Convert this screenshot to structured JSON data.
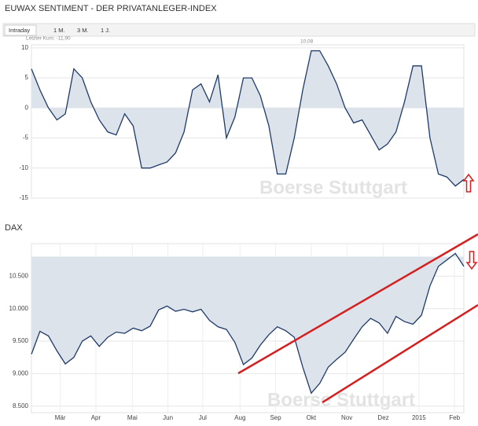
{
  "tabs": [
    "Intraday",
    "1 M.",
    "3 M.",
    "1 J."
  ],
  "chart_data": [
    {
      "type": "line",
      "title": "EUWAX SENTIMENT - DER PRIVATANLEGER-INDEX",
      "annotations": [
        "Letzter Kurs: -11,90",
        "10,08",
        "Boerse Stuttgart"
      ],
      "values": [
        6.5,
        3,
        0,
        -2,
        -1,
        6.5,
        5,
        1,
        -2,
        -4,
        -4.5,
        -1,
        -3,
        -10,
        -10,
        -9.5,
        -9,
        -7.5,
        -4,
        3,
        4,
        1,
        5.5,
        -5,
        -1.5,
        5,
        5,
        2,
        -3,
        -11,
        -11,
        -5,
        3,
        9.5,
        9.5,
        7,
        4,
        0,
        -2.5,
        -2,
        -4.5,
        -7,
        -6,
        -4,
        1,
        7,
        7,
        -5,
        -11,
        -11.5,
        -13,
        -11.9
      ],
      "color": "#1f3a68",
      "fill_color": "#dde3ea",
      "fill_baseline": 0,
      "xlim": [
        0,
        51
      ],
      "ylim": [
        -15,
        10.5
      ],
      "yticks": [
        10,
        5,
        0,
        -5,
        -10,
        -15
      ],
      "grid": true
    },
    {
      "type": "line",
      "title": "DAX",
      "annotations": [
        "Boerse Stuttgart"
      ],
      "values": [
        9300,
        9650,
        9580,
        9350,
        9150,
        9250,
        9500,
        9580,
        9420,
        9560,
        9640,
        9620,
        9700,
        9660,
        9730,
        9980,
        10040,
        9960,
        9990,
        9950,
        9990,
        9820,
        9720,
        9680,
        9480,
        9140,
        9240,
        9440,
        9600,
        9720,
        9660,
        9560,
        9100,
        8700,
        8850,
        9100,
        9220,
        9330,
        9530,
        9720,
        9850,
        9780,
        9620,
        9880,
        9800,
        9760,
        9900,
        10350,
        10650,
        10750,
        10850,
        10650
      ],
      "color": "#1f3a68",
      "fill_color": "#dde3ea",
      "fill_baseline": 10800,
      "xlim": [
        0,
        51
      ],
      "ylim": [
        8400,
        11000
      ],
      "yticks": [
        {
          "value": 10500,
          "label": "10.500"
        },
        {
          "value": 10000,
          "label": "10.000"
        },
        {
          "value": 9500,
          "label": "9.500"
        },
        {
          "value": 9000,
          "label": "9.000"
        },
        {
          "value": 8500,
          "label": "8.500"
        }
      ],
      "xticks": [
        {
          "value": 3.4,
          "label": "Mär"
        },
        {
          "value": 7.6,
          "label": "Apr"
        },
        {
          "value": 11.9,
          "label": "Mai"
        },
        {
          "value": 16.1,
          "label": "Jun"
        },
        {
          "value": 20.2,
          "label": "Jul"
        },
        {
          "value": 24.6,
          "label": "Aug"
        },
        {
          "value": 28.8,
          "label": "Sep"
        },
        {
          "value": 33.0,
          "label": "Okt"
        },
        {
          "value": 37.2,
          "label": "Nov"
        },
        {
          "value": 41.5,
          "label": "Dez"
        },
        {
          "value": 45.7,
          "label": "2015"
        },
        {
          "value": 49.9,
          "label": "Feb"
        }
      ],
      "grid": true
    }
  ]
}
